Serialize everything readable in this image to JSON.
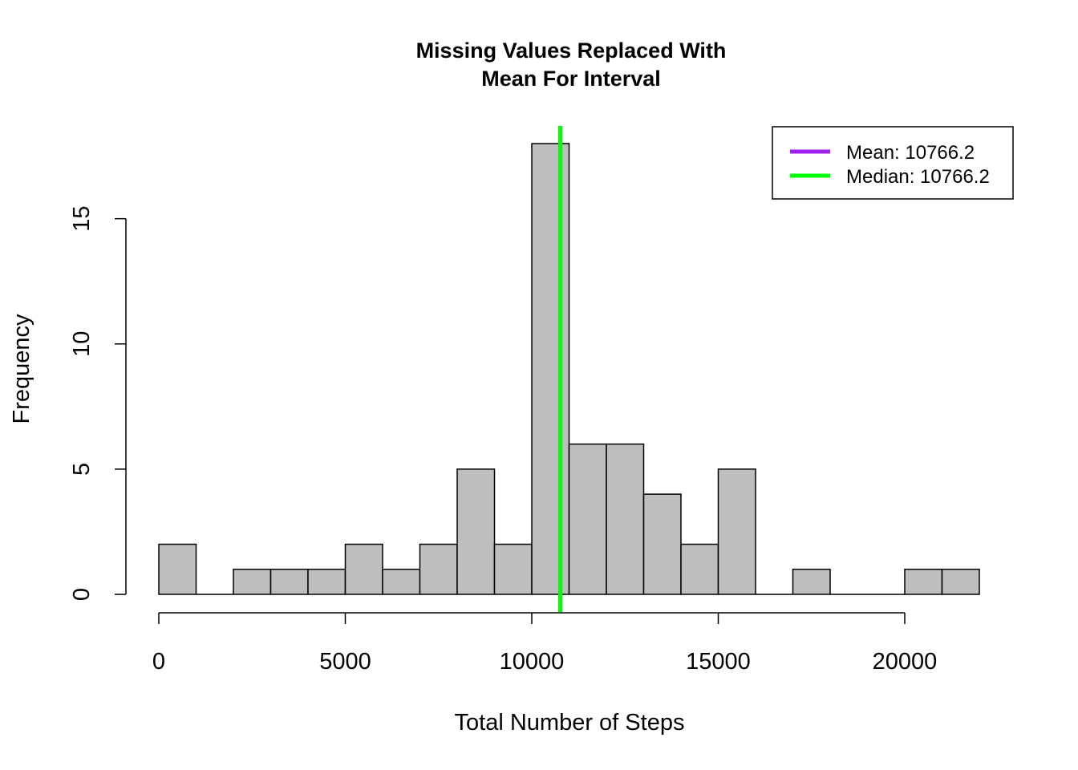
{
  "chart_data": {
    "type": "bar",
    "title_lines": [
      "Missing Values Replaced With",
      "Mean For Interval"
    ],
    "xlabel": "Total Number of Steps",
    "ylabel": "Frequency",
    "bin_width": 1000,
    "bins": [
      {
        "start": 0,
        "end": 1000,
        "count": 2
      },
      {
        "start": 1000,
        "end": 2000,
        "count": 0
      },
      {
        "start": 2000,
        "end": 3000,
        "count": 1
      },
      {
        "start": 3000,
        "end": 4000,
        "count": 1
      },
      {
        "start": 4000,
        "end": 5000,
        "count": 1
      },
      {
        "start": 5000,
        "end": 6000,
        "count": 2
      },
      {
        "start": 6000,
        "end": 7000,
        "count": 1
      },
      {
        "start": 7000,
        "end": 8000,
        "count": 2
      },
      {
        "start": 8000,
        "end": 9000,
        "count": 5
      },
      {
        "start": 9000,
        "end": 10000,
        "count": 2
      },
      {
        "start": 10000,
        "end": 11000,
        "count": 18
      },
      {
        "start": 11000,
        "end": 12000,
        "count": 6
      },
      {
        "start": 12000,
        "end": 13000,
        "count": 6
      },
      {
        "start": 13000,
        "end": 14000,
        "count": 4
      },
      {
        "start": 14000,
        "end": 15000,
        "count": 2
      },
      {
        "start": 15000,
        "end": 16000,
        "count": 5
      },
      {
        "start": 16000,
        "end": 17000,
        "count": 0
      },
      {
        "start": 17000,
        "end": 18000,
        "count": 1
      },
      {
        "start": 18000,
        "end": 19000,
        "count": 0
      },
      {
        "start": 19000,
        "end": 20000,
        "count": 0
      },
      {
        "start": 20000,
        "end": 21000,
        "count": 1
      },
      {
        "start": 21000,
        "end": 22000,
        "count": 1
      }
    ],
    "x_ticks": [
      0,
      5000,
      10000,
      15000,
      20000
    ],
    "y_ticks": [
      0,
      5,
      10,
      15
    ],
    "xlim": [
      0,
      22000
    ],
    "ylim": [
      0,
      18
    ],
    "bar_color": "#bebebe",
    "bar_border": "#000000",
    "reference_lines": [
      {
        "name": "Mean",
        "value": 10766.2,
        "color": "#a020f0",
        "label": "Mean:  10766.2"
      },
      {
        "name": "Median",
        "value": 10766.2,
        "color": "#00ff00",
        "label": "Median:  10766.2"
      }
    ],
    "legend_position": "top-right",
    "grid": false
  }
}
